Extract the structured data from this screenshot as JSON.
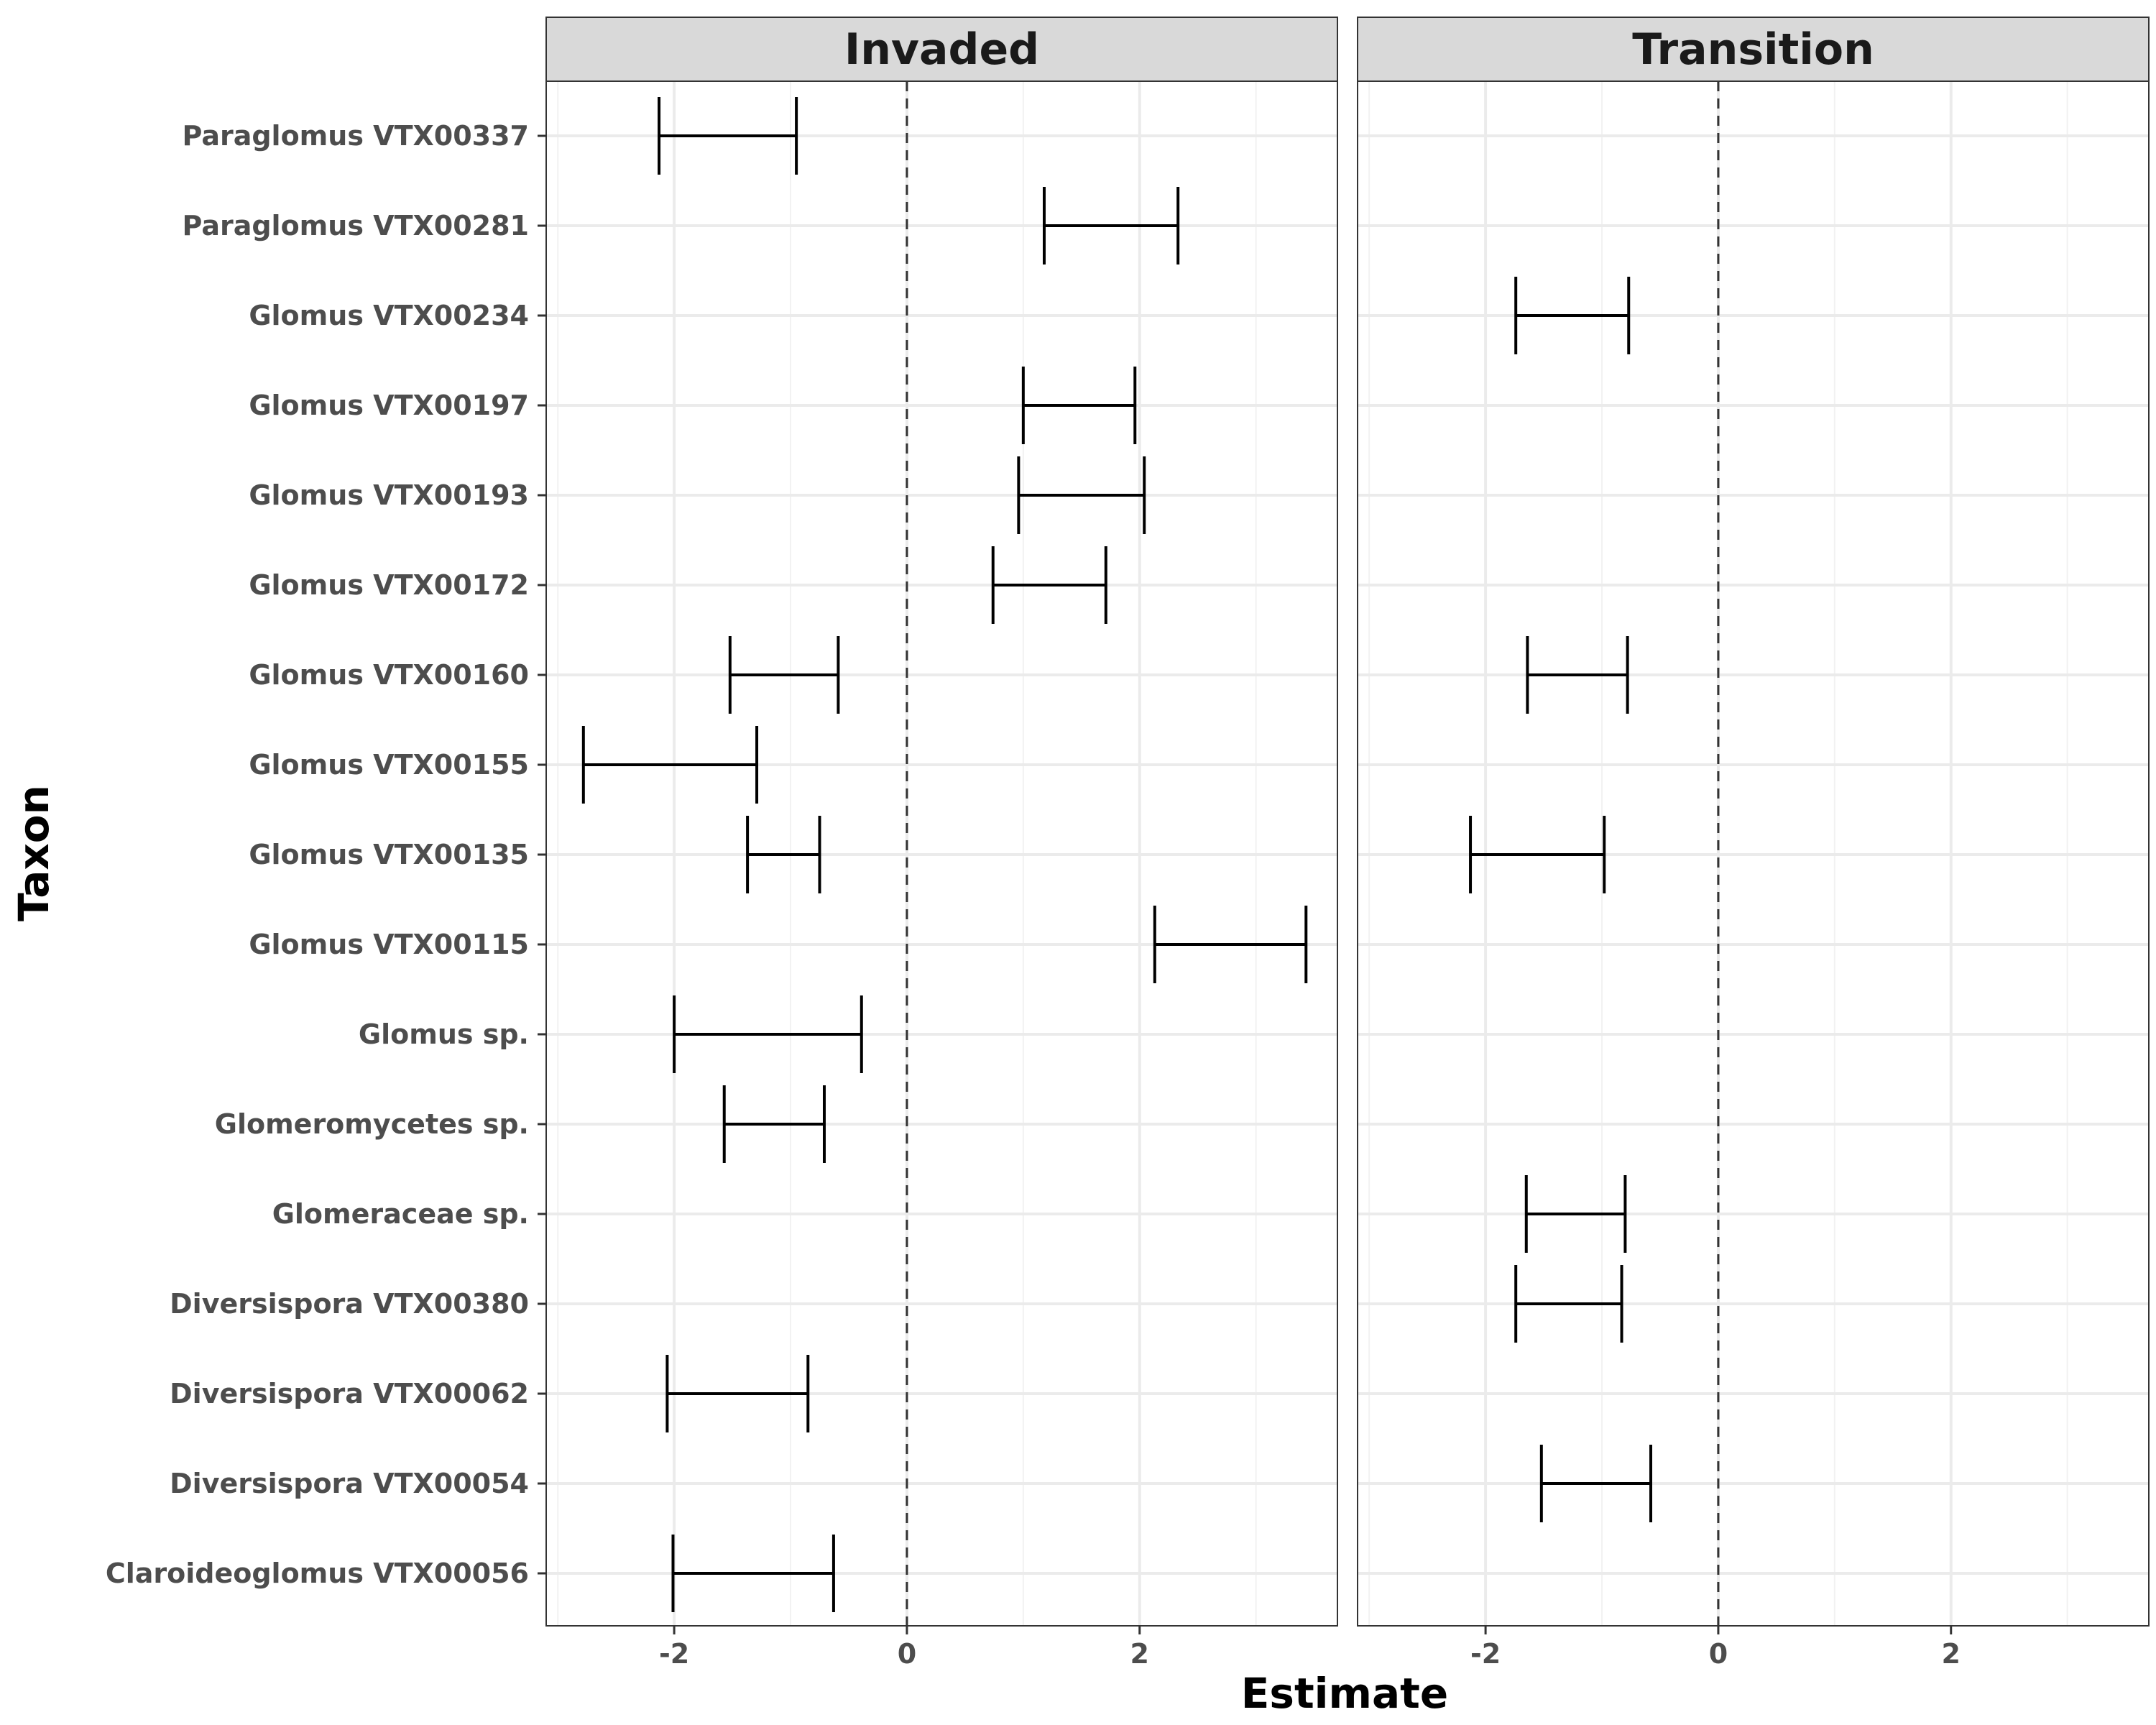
{
  "chart_data": {
    "type": "errorbar",
    "xlabel": "Estimate",
    "ylabel": "Taxon",
    "xlim": [
      -3.1,
      3.7
    ],
    "xticks": [
      -2,
      0,
      2
    ],
    "reference_line": 0,
    "grid": true,
    "taxa": [
      "Paraglomus VTX00337",
      "Paraglomus VTX00281",
      "Glomus VTX00234",
      "Glomus VTX00197",
      "Glomus VTX00193",
      "Glomus VTX00172",
      "Glomus VTX00160",
      "Glomus VTX00155",
      "Glomus VTX00135",
      "Glomus VTX00115",
      "Glomus sp.",
      "Glomeromycetes sp.",
      "Glomeraceae sp.",
      "Diversispora VTX00380",
      "Diversispora VTX00062",
      "Diversispora VTX00054",
      "Claroideoglomus VTX00056"
    ],
    "panels": [
      {
        "name": "Invaded",
        "intervals": [
          {
            "taxon": "Paraglomus VTX00337",
            "low": -2.13,
            "high": -0.95
          },
          {
            "taxon": "Paraglomus VTX00281",
            "low": 1.18,
            "high": 2.33
          },
          {
            "taxon": "Glomus VTX00197",
            "low": 1.0,
            "high": 1.96
          },
          {
            "taxon": "Glomus VTX00193",
            "low": 0.96,
            "high": 2.04
          },
          {
            "taxon": "Glomus VTX00172",
            "low": 0.74,
            "high": 1.71
          },
          {
            "taxon": "Glomus VTX00160",
            "low": -1.52,
            "high": -0.59
          },
          {
            "taxon": "Glomus VTX00155",
            "low": -2.78,
            "high": -1.29
          },
          {
            "taxon": "Glomus VTX00135",
            "low": -1.37,
            "high": -0.75
          },
          {
            "taxon": "Glomus VTX00115",
            "low": 2.13,
            "high": 3.43
          },
          {
            "taxon": "Glomus sp.",
            "low": -2.0,
            "high": -0.39
          },
          {
            "taxon": "Glomeromycetes sp.",
            "low": -1.57,
            "high": -0.71
          },
          {
            "taxon": "Diversispora VTX00062",
            "low": -2.06,
            "high": -0.85
          },
          {
            "taxon": "Claroideoglomus VTX00056",
            "low": -2.01,
            "high": -0.63
          }
        ]
      },
      {
        "name": "Transition",
        "intervals": [
          {
            "taxon": "Glomus VTX00234",
            "low": -1.74,
            "high": -0.77
          },
          {
            "taxon": "Glomus VTX00160",
            "low": -1.64,
            "high": -0.78
          },
          {
            "taxon": "Glomus VTX00135",
            "low": -2.13,
            "high": -0.98
          },
          {
            "taxon": "Glomeraceae sp.",
            "low": -1.65,
            "high": -0.8
          },
          {
            "taxon": "Diversispora VTX00380",
            "low": -1.74,
            "high": -0.83
          },
          {
            "taxon": "Diversispora VTX00054",
            "low": -1.52,
            "high": -0.58
          }
        ]
      }
    ]
  }
}
